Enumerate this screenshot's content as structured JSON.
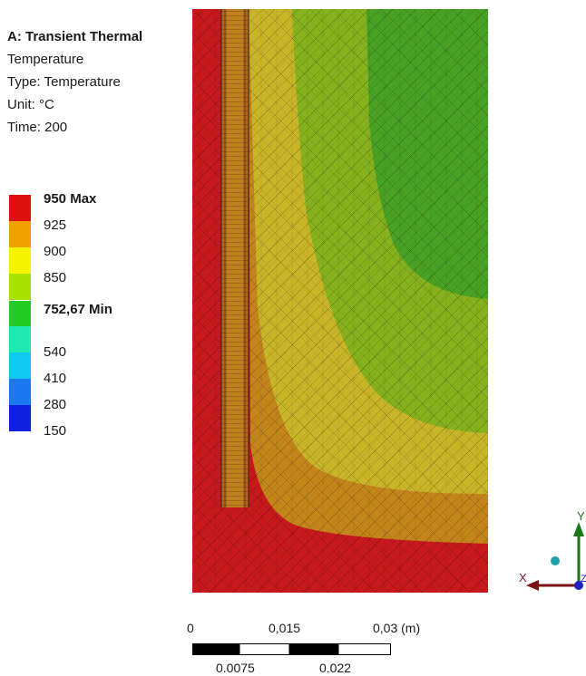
{
  "header": {
    "title": "A: Transient Thermal",
    "result": "Temperature",
    "type": "Type: Temperature",
    "unit": "Unit: °C",
    "time": "Time: 200"
  },
  "legend": {
    "entries": [
      {
        "label": "950 Max",
        "bold": true,
        "color": "#e01010"
      },
      {
        "label": "925",
        "bold": false,
        "color": "#f0a000"
      },
      {
        "label": "900",
        "bold": false,
        "color": "#f4f400"
      },
      {
        "label": "850",
        "bold": false,
        "color": "#a8e200"
      },
      {
        "label": "752,67 Min",
        "bold": true,
        "color": "#22cc22"
      },
      {
        "label": "540",
        "bold": false,
        "color": "#20e8b0"
      },
      {
        "label": "410",
        "bold": false,
        "color": "#10c8f0"
      },
      {
        "label": "280",
        "bold": false,
        "color": "#1a78f0"
      },
      {
        "label": "150",
        "bold": false,
        "color": "#1020e0"
      }
    ]
  },
  "scale_bar": {
    "top_labels": [
      "0",
      "0,015",
      "0,03 (m)"
    ],
    "bottom_labels": [
      "0.0075",
      "0.022"
    ]
  },
  "triad": {
    "x_label": "X",
    "y_label": "Y",
    "z_label": "Z"
  },
  "contour_colors": {
    "red": "#c8191c",
    "orange": "#c4861a",
    "yellow": "#c9b628",
    "lime": "#86b21e",
    "green": "#4aa225"
  }
}
